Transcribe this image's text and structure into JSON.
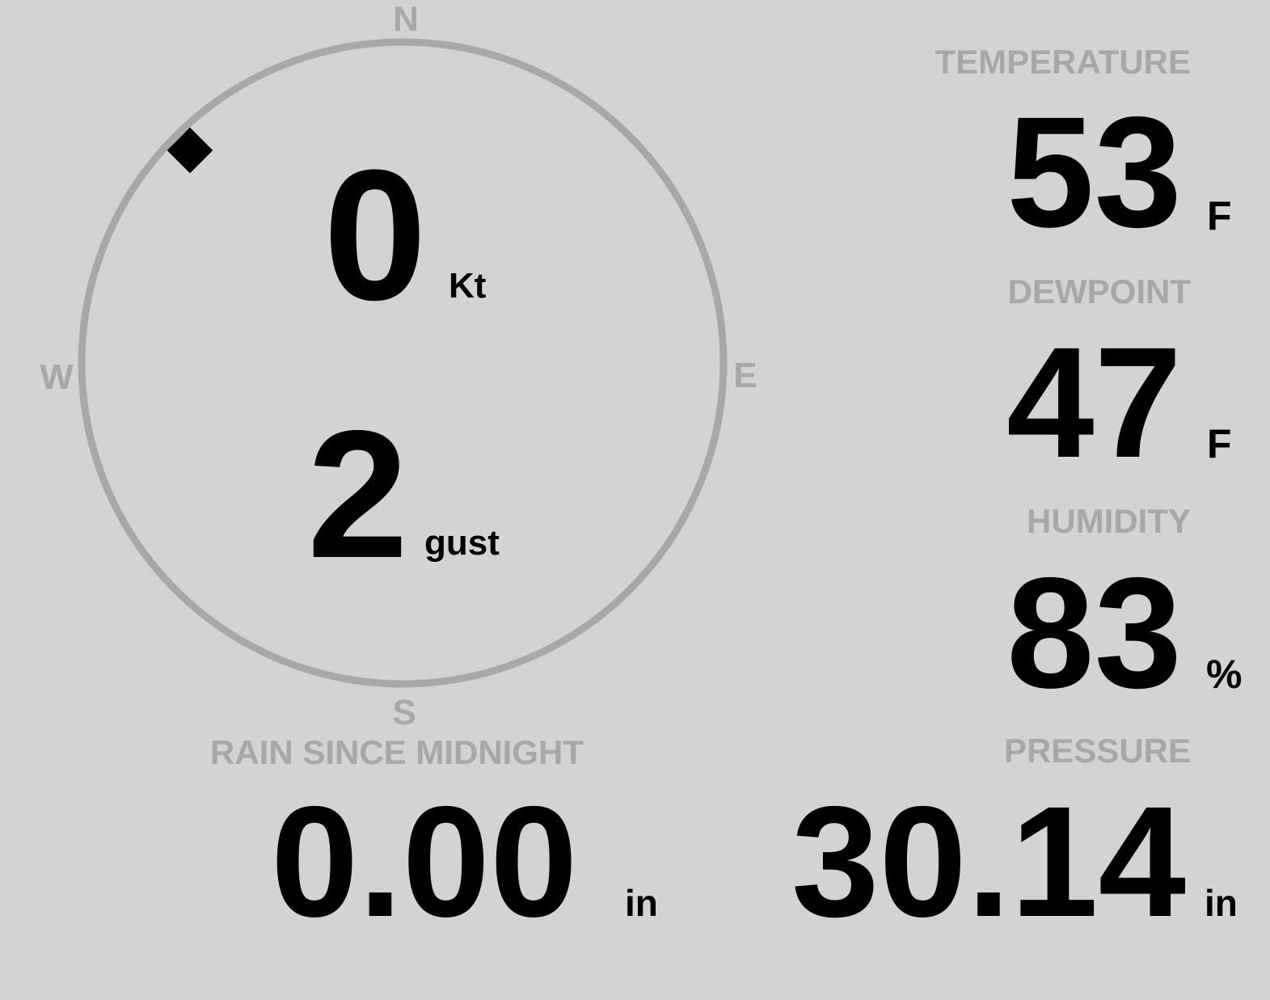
{
  "colors": {
    "background": "#d3d3d3",
    "label": "#a8a8a8",
    "value": "#000000"
  },
  "compass": {
    "north": "N",
    "east": "E",
    "south": "S",
    "west": "W",
    "wind_direction_deg": 315,
    "wind_speed": "0",
    "wind_speed_unit": "Kt",
    "gust": "2",
    "gust_unit": "gust"
  },
  "temperature": {
    "label": "TEMPERATURE",
    "value": "53",
    "unit": "F"
  },
  "dewpoint": {
    "label": "DEWPOINT",
    "value": "47",
    "unit": "F"
  },
  "humidity": {
    "label": "HUMIDITY",
    "value": "83",
    "unit": "%"
  },
  "pressure": {
    "label": "PRESSURE",
    "value": "30.14",
    "unit": "in"
  },
  "rain": {
    "label": "RAIN SINCE MIDNIGHT",
    "value": "0.00",
    "unit": "in"
  }
}
